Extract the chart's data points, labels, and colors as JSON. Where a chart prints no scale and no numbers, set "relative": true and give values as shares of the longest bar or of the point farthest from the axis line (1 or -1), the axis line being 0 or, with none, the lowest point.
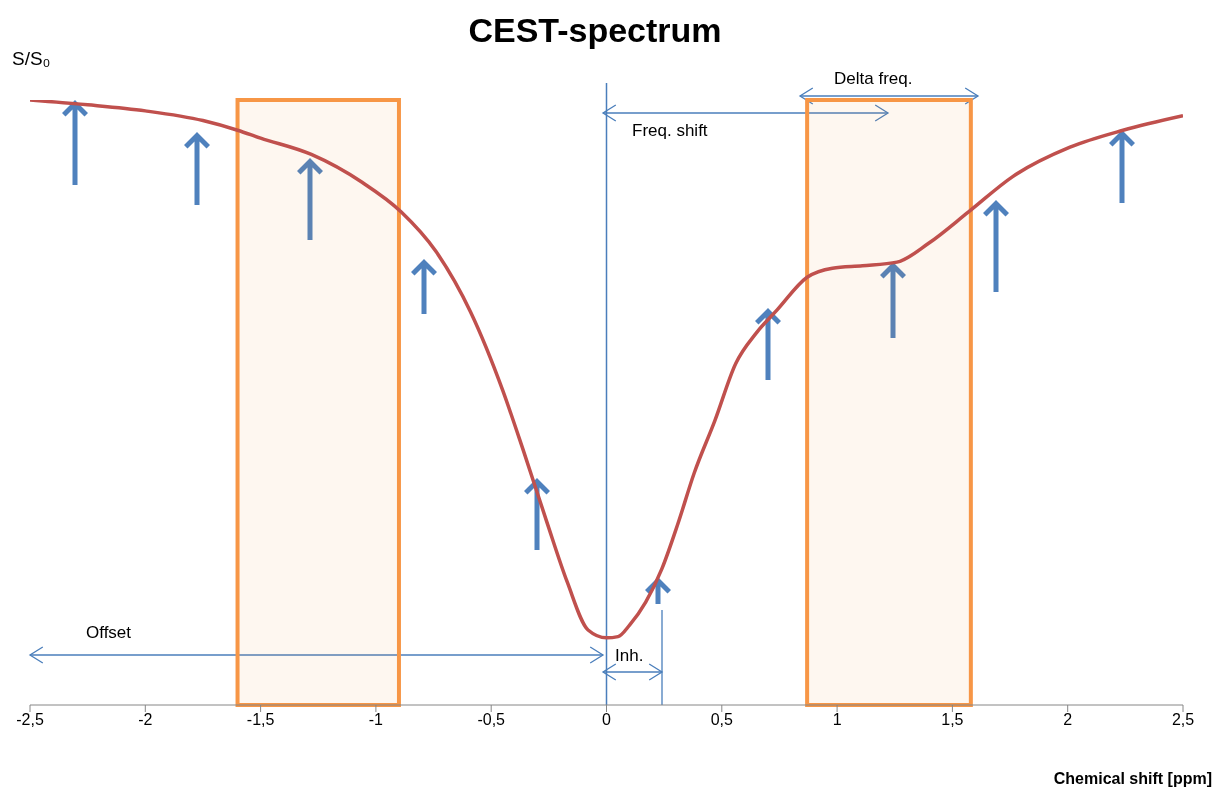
{
  "chart_data": {
    "type": "line",
    "title": "CEST-spectrum",
    "xlabel": "Chemical shift [ppm]",
    "ylabel": "S/S₀",
    "relative": true,
    "x": [
      -2.5,
      -2.25,
      -2.0,
      -1.75,
      -1.6,
      -1.5,
      -1.28,
      -1.06,
      -0.89,
      -0.74,
      -0.59,
      -0.45,
      -0.36,
      -0.26,
      -0.17,
      -0.08,
      0,
      0.05,
      0.1,
      0.17,
      0.24,
      0.31,
      0.38,
      0.47,
      0.56,
      0.65,
      0.74,
      0.87,
      0.98,
      1.11,
      1.26,
      1.4,
      1.57,
      1.76,
      2.01,
      2.24,
      2.5
    ],
    "series": [
      {
        "color": "#c0504d",
        "values": [
          1.0,
          0.992,
          0.982,
          0.966,
          0.95,
          0.937,
          0.91,
          0.864,
          0.815,
          0.75,
          0.65,
          0.52,
          0.42,
          0.304,
          0.203,
          0.124,
          0.111,
          0.113,
          0.132,
          0.17,
          0.225,
          0.3,
          0.383,
          0.47,
          0.564,
          0.615,
          0.653,
          0.707,
          0.722,
          0.726,
          0.732,
          0.764,
          0.815,
          0.873,
          0.922,
          0.95,
          0.974
        ]
      }
    ],
    "xlim": [
      -2.5,
      2.5
    ],
    "xticks": [
      {
        "value": -2.5,
        "label": "-2,5"
      },
      -2,
      {
        "value": -1.5,
        "label": "-1,5"
      },
      -1,
      {
        "value": -0.5,
        "label": "-0,5"
      },
      0,
      {
        "value": 0.5,
        "label": "0,5"
      },
      1,
      {
        "value": 1.5,
        "label": "1,5"
      },
      2,
      {
        "value": 2.5,
        "label": "2,5"
      }
    ],
    "ref_lines": [
      {
        "axis": "x",
        "value": 0,
        "color": "#4a7ebb"
      }
    ],
    "bands": [
      {
        "axis": "x",
        "from": -1.6,
        "to": -0.9,
        "color": "#f79646"
      },
      {
        "axis": "x",
        "from": 0.87,
        "to": 1.58,
        "color": "#f79646"
      }
    ],
    "annotations": [
      "Offset",
      "Freq. shift",
      "Delta freq.",
      "Inh."
    ],
    "grid": false,
    "legend": false,
    "marker": "none",
    "line_style": "solid"
  }
}
